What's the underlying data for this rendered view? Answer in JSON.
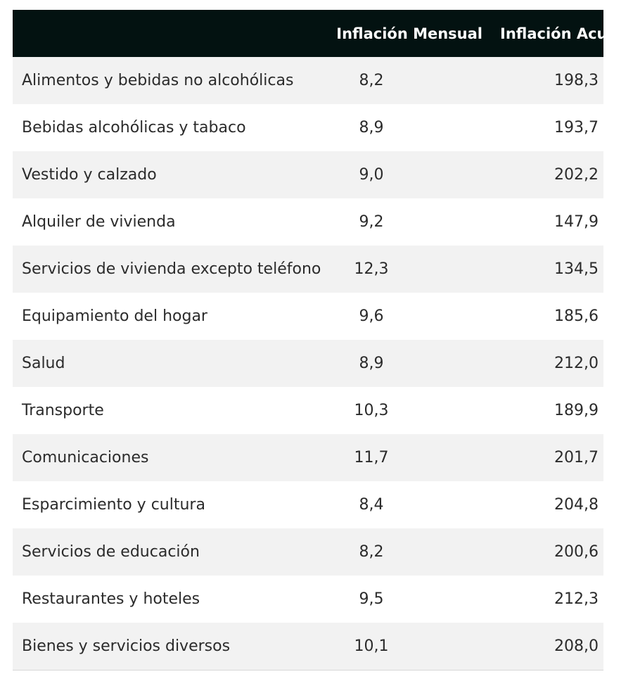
{
  "table": {
    "headers": [
      "",
      "Inflación Mensual",
      "Inflación Acumulada"
    ],
    "rows": [
      {
        "category": "Alimentos y bebidas no alcohólicas",
        "monthly": "8,2",
        "accumulated": "198,3"
      },
      {
        "category": "Bebidas alcohólicas y tabaco",
        "monthly": "8,9",
        "accumulated": "193,7"
      },
      {
        "category": "Vestido y calzado",
        "monthly": "9,0",
        "accumulated": "202,2"
      },
      {
        "category": "Alquiler de vivienda",
        "monthly": "9,2",
        "accumulated": "147,9"
      },
      {
        "category": "Servicios de vivienda excepto teléfono",
        "monthly": "12,3",
        "accumulated": "134,5"
      },
      {
        "category": "Equipamiento del hogar",
        "monthly": "9,6",
        "accumulated": "185,6"
      },
      {
        "category": "Salud",
        "monthly": "8,9",
        "accumulated": "212,0"
      },
      {
        "category": "Transporte",
        "monthly": "10,3",
        "accumulated": "189,9"
      },
      {
        "category": "Comunicaciones",
        "monthly": "11,7",
        "accumulated": "201,7"
      },
      {
        "category": "Esparcimiento y cultura",
        "monthly": "8,4",
        "accumulated": "204,8"
      },
      {
        "category": "Servicios de educación",
        "monthly": "8,2",
        "accumulated": "200,6"
      },
      {
        "category": "Restaurantes y hoteles",
        "monthly": "9,5",
        "accumulated": "212,3"
      },
      {
        "category": "Bienes y servicios diversos",
        "monthly": "10,1",
        "accumulated": "208,0"
      }
    ]
  },
  "colors": {
    "header_bg": "#031211",
    "header_text": "#ffffff",
    "row_alt_bg": "#f2f2f2",
    "row_bg": "#ffffff",
    "cell_text": "#2b2b2b"
  }
}
